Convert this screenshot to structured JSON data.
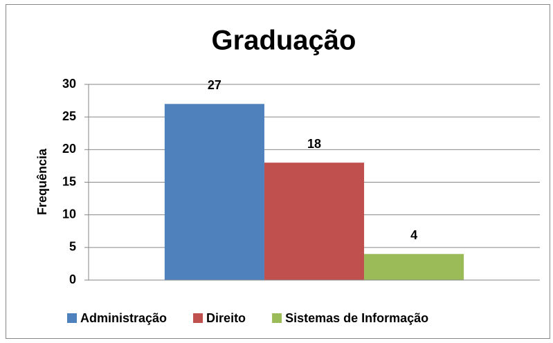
{
  "chart_data": {
    "type": "bar",
    "title": "Graduação",
    "y_label": "Frequência",
    "categories": [
      null
    ],
    "series": [
      {
        "name": "Administração",
        "color": "#4f81bd",
        "values": [
          27
        ]
      },
      {
        "name": "Direito",
        "color": "#c0504d",
        "values": [
          18
        ]
      },
      {
        "name": "Sistemas de Informação",
        "color": "#9bbb59",
        "values": [
          4
        ]
      }
    ],
    "ylim": [
      0,
      30
    ],
    "yticks": [
      0,
      5,
      10,
      15,
      20,
      25,
      30
    ],
    "grid": true,
    "legend": "bottom"
  }
}
